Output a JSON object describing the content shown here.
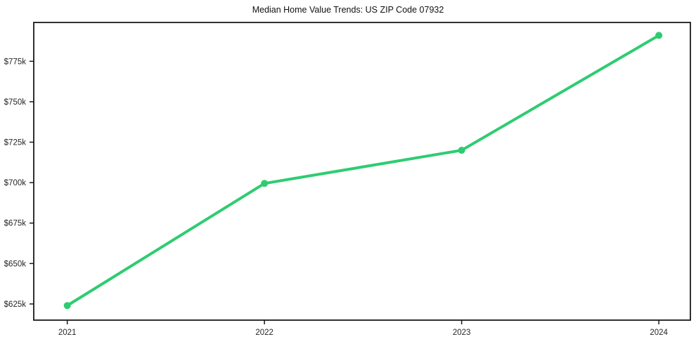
{
  "chart": {
    "title": "Median Home Value Trends: US ZIP Code 07932"
  },
  "chart_data": {
    "type": "line",
    "title": "Median Home Value Trends: US ZIP Code 07932",
    "x": [
      2021,
      2022,
      2023,
      2024
    ],
    "values": [
      624000,
      699500,
      720000,
      791000
    ],
    "x_tick_labels": [
      "2021",
      "2022",
      "2023",
      "2024"
    ],
    "y_ticks": [
      625000,
      650000,
      675000,
      700000,
      725000,
      750000,
      775000
    ],
    "y_tick_labels": [
      "$625k",
      "$650k",
      "$675k",
      "$700k",
      "$725k",
      "$750k",
      "$775k"
    ],
    "xlabel": "",
    "ylabel": "",
    "xlim": [
      2020.83,
      2024.16
    ],
    "ylim": [
      615000,
      799000
    ],
    "grid": false,
    "legend": "none",
    "line_color": "#2ecc71",
    "marker": "circle",
    "axis_color": "#1a1a1a",
    "tick_label_color": "#262626",
    "background": "#ffffff"
  }
}
